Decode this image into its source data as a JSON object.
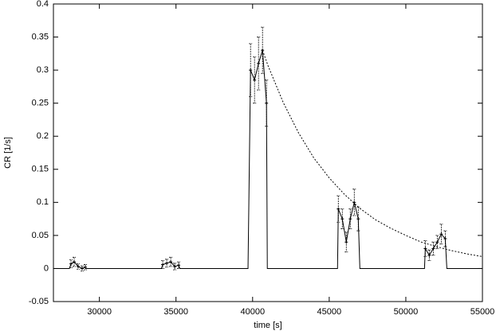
{
  "chart_data": {
    "type": "line",
    "x_label": "time [s]",
    "y_label": "CR [1/s]",
    "xlim": [
      27000,
      55000
    ],
    "ylim": [
      -0.05,
      0.4
    ],
    "xticks": [
      30000,
      35000,
      40000,
      45000,
      50000,
      55000
    ],
    "yticks": [
      -0.05,
      0,
      0.05,
      0.1,
      0.15,
      0.2,
      0.25,
      0.3,
      0.35,
      0.4
    ],
    "color": "#000000",
    "series": [
      {
        "style": "solid",
        "x": [
          27000,
          28042,
          28146,
          28354,
          28615,
          28875,
          29083,
          29100,
          34050,
          34135,
          34396,
          34656,
          34917,
          35177,
          35250,
          39700,
          39865,
          40125,
          40385,
          40646,
          40906,
          40960,
          45542,
          45594,
          45854,
          46115,
          46375,
          46635,
          46896,
          47000,
          51219,
          51271,
          51531,
          51792,
          52052,
          52313,
          52573,
          52677,
          55000
        ],
        "values": [
          0,
          0,
          0.007,
          0.01,
          0.003,
          0,
          0.002,
          0,
          0,
          0.006,
          0.008,
          0.01,
          0.003,
          0.005,
          0,
          0,
          0.3,
          0.285,
          0.31,
          0.33,
          0.25,
          0,
          0,
          0.09,
          0.075,
          0.04,
          0.075,
          0.1,
          0.075,
          0,
          0,
          0.03,
          0.02,
          0.03,
          0.04,
          0.052,
          0.045,
          0,
          0
        ]
      },
      {
        "style": "errorbars",
        "x": [
          28146,
          28354,
          28615,
          28875,
          29083,
          34135,
          34396,
          34656,
          34917,
          35177,
          39865,
          40125,
          40385,
          40646,
          40906,
          45594,
          45854,
          46115,
          46375,
          46635,
          46896,
          51271,
          51531,
          51792,
          52052,
          52313,
          52573
        ],
        "values": [
          0.007,
          0.01,
          0.003,
          0,
          0.002,
          0.006,
          0.008,
          0.01,
          0.003,
          0.005,
          0.3,
          0.285,
          0.31,
          0.33,
          0.25,
          0.09,
          0.075,
          0.04,
          0.075,
          0.1,
          0.075,
          0.03,
          0.02,
          0.03,
          0.04,
          0.052,
          0.045
        ],
        "errors": [
          0.006,
          0.007,
          0.004,
          0.004,
          0.004,
          0.006,
          0.006,
          0.007,
          0.005,
          0.005,
          0.04,
          0.035,
          0.04,
          0.035,
          0.035,
          0.02,
          0.015,
          0.015,
          0.015,
          0.02,
          0.018,
          0.012,
          0.008,
          0.01,
          0.01,
          0.015,
          0.012
        ]
      },
      {
        "style": "dotted",
        "x": [
          40650,
          41000,
          42000,
          43000,
          44000,
          45000,
          46000,
          47000,
          48000,
          49000,
          50000,
          51000,
          52000,
          53000,
          54000,
          55000
        ],
        "values": [
          0.33,
          0.307,
          0.251,
          0.205,
          0.167,
          0.137,
          0.112,
          0.091,
          0.074,
          0.061,
          0.05,
          0.04,
          0.033,
          0.027,
          0.022,
          0.018
        ]
      }
    ]
  }
}
